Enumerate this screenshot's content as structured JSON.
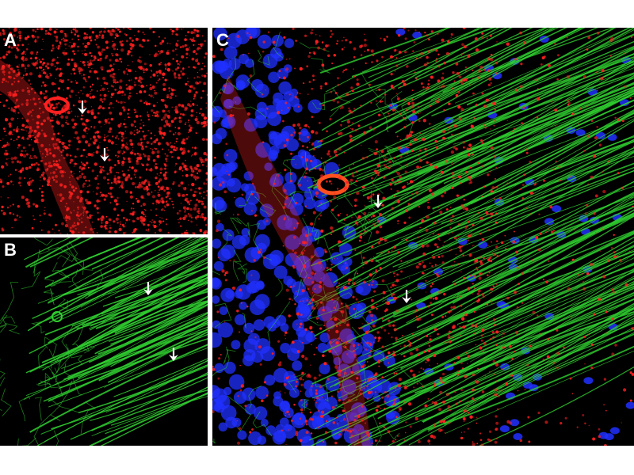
{
  "figure": {
    "panels": [
      {
        "label": "A",
        "channel": "red",
        "color": "#ff2020",
        "arrows": 2
      },
      {
        "label": "B",
        "channel": "green",
        "color": "#30d030",
        "arrows": 2
      },
      {
        "label": "C",
        "channel": "merge",
        "colors": [
          "#ff2020",
          "#30d030",
          "#2030ff"
        ],
        "arrows": 2
      }
    ]
  }
}
